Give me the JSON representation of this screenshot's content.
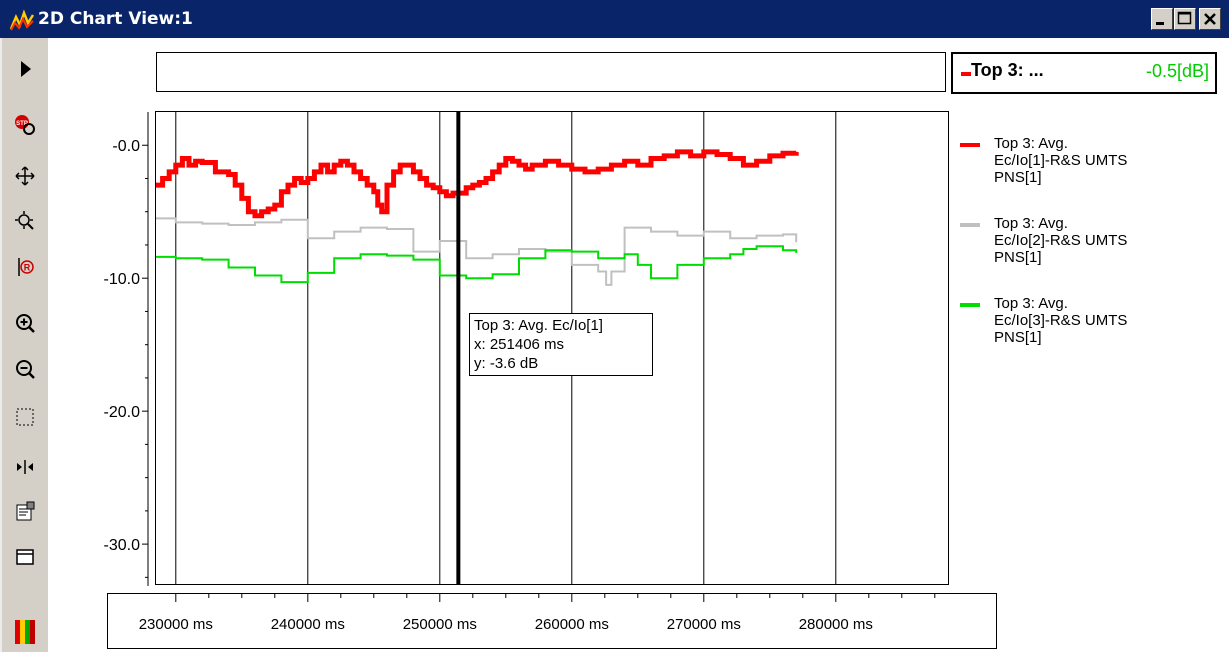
{
  "window": {
    "title": "2D Chart View:1",
    "controls": [
      "minimize",
      "maximize",
      "close"
    ],
    "titlebar_color": "#0a246a"
  },
  "toolbar": {
    "tools": [
      {
        "name": "play-icon"
      },
      {
        "name": "stop-icon"
      },
      {
        "name": "pan-icon"
      },
      {
        "name": "zoom-fit-icon"
      },
      {
        "name": "marker-r-icon"
      },
      {
        "name": "zoom-in-icon"
      },
      {
        "name": "zoom-out-icon"
      },
      {
        "name": "zoom-rect-icon"
      },
      {
        "name": "align-icon"
      },
      {
        "name": "properties-icon"
      },
      {
        "name": "window-icon"
      },
      {
        "name": "color-bars-icon"
      }
    ]
  },
  "header_legend": {
    "name": "Top 3: ...",
    "value": "-0.5[dB]",
    "value_color": "#00cc00"
  },
  "tooltip": {
    "series": "Top 3: Avg. Ec/Io[1]",
    "x": "x: 251406 ms",
    "y": "y: -3.6 dB"
  },
  "legend": [
    {
      "line1": "Top 3: Avg.",
      "line2": "Ec/Io[1]-R&S UMTS",
      "line3": "PNS[1]",
      "color": "#ff0000"
    },
    {
      "line1": "Top 3: Avg.",
      "line2": "Ec/Io[2]-R&S UMTS",
      "line3": "PNS[1]",
      "color": "#c0c0c0"
    },
    {
      "line1": "Top 3: Avg.",
      "line2": "Ec/Io[3]-R&S UMTS",
      "line3": "PNS[1]",
      "color": "#00dd00"
    }
  ],
  "chart_data": {
    "type": "line",
    "title": "",
    "xlabel": "",
    "ylabel": "",
    "xlim": [
      228500,
      288500
    ],
    "ylim": [
      -33,
      2.5
    ],
    "x_ticks": [
      230000,
      240000,
      250000,
      260000,
      270000,
      280000
    ],
    "x_tick_labels": [
      "230000 ms",
      "240000 ms",
      "250000 ms",
      "260000 ms",
      "270000 ms",
      "280000 ms"
    ],
    "y_ticks": [
      0,
      -10,
      -20,
      -30
    ],
    "y_tick_labels": [
      "-0.0",
      "-10.0",
      "-20.0",
      "-30.0"
    ],
    "vertical_gridlines": [
      230000,
      240000,
      250000,
      260000,
      270000,
      280000
    ],
    "cursor_x": 251406,
    "grid": true,
    "legend_position": "right",
    "series": [
      {
        "name": "Top 3: Avg. Ec/Io[1]-R&S UMTS PNS[1]",
        "color": "#ff0000",
        "width": 5,
        "x": [
          228500,
          229000,
          229500,
          230000,
          230500,
          231000,
          231500,
          232000,
          233000,
          234000,
          234500,
          235000,
          235500,
          236000,
          236500,
          237000,
          237500,
          238000,
          238500,
          239000,
          239500,
          240000,
          240500,
          241000,
          241500,
          242000,
          242500,
          243000,
          243500,
          244000,
          244500,
          245000,
          245300,
          245600,
          246000,
          246500,
          247000,
          247500,
          248000,
          248500,
          249000,
          249500,
          250000,
          250500,
          251000,
          251406,
          252000,
          252500,
          253000,
          253500,
          254000,
          254500,
          255000,
          255500,
          256000,
          256500,
          257000,
          258000,
          259000,
          260000,
          261000,
          262000,
          263000,
          264000,
          265000,
          266000,
          267000,
          268000,
          269000,
          270000,
          271000,
          272000,
          273000,
          274000,
          275000,
          276000,
          277000
        ],
        "y": [
          -3.0,
          -2.5,
          -2.0,
          -1.5,
          -1.0,
          -1.5,
          -1.2,
          -1.3,
          -2.0,
          -2.2,
          -3.0,
          -4.0,
          -5.0,
          -5.3,
          -5.0,
          -4.8,
          -4.5,
          -3.5,
          -3.0,
          -2.5,
          -2.8,
          -2.5,
          -2.0,
          -1.5,
          -2.0,
          -1.5,
          -1.2,
          -1.5,
          -2.0,
          -2.5,
          -3.0,
          -3.5,
          -4.5,
          -5.0,
          -3.0,
          -2.0,
          -1.5,
          -1.5,
          -2.0,
          -2.5,
          -3.0,
          -3.2,
          -3.5,
          -3.8,
          -3.6,
          -3.6,
          -3.2,
          -3.0,
          -2.8,
          -2.5,
          -2.0,
          -1.5,
          -1.0,
          -1.2,
          -1.5,
          -1.8,
          -1.5,
          -1.2,
          -1.5,
          -1.8,
          -2.0,
          -1.8,
          -1.5,
          -1.2,
          -1.5,
          -1.0,
          -0.8,
          -0.5,
          -0.8,
          -0.5,
          -0.7,
          -1.0,
          -1.5,
          -1.2,
          -0.8,
          -0.6,
          -0.5
        ]
      },
      {
        "name": "Top 3: Avg. Ec/Io[2]-R&S UMTS PNS[1]",
        "color": "#c0c0c0",
        "width": 2,
        "x": [
          228500,
          230000,
          232000,
          234000,
          236000,
          238000,
          240000,
          242000,
          244000,
          246000,
          248000,
          250000,
          252000,
          254000,
          256000,
          258000,
          260000,
          262000,
          262600,
          263000,
          264000,
          266000,
          268000,
          270000,
          272000,
          274000,
          276000,
          277000
        ],
        "y": [
          -5.5,
          -5.8,
          -5.9,
          -6.0,
          -5.8,
          -5.6,
          -7.0,
          -6.5,
          -6.2,
          -6.3,
          -8.0,
          -7.2,
          -8.5,
          -8.2,
          -7.8,
          -8.0,
          -9.0,
          -9.5,
          -10.5,
          -9.5,
          -6.2,
          -6.5,
          -6.8,
          -6.5,
          -7.0,
          -6.8,
          -6.7,
          -7.3
        ]
      },
      {
        "name": "Top 3: Avg. Ec/Io[3]-R&S UMTS PNS[1]",
        "color": "#00dd00",
        "width": 2,
        "x": [
          228500,
          230000,
          232000,
          234000,
          236000,
          238000,
          240000,
          242000,
          244000,
          246000,
          248000,
          250000,
          252000,
          254000,
          256000,
          258000,
          260000,
          262000,
          264000,
          265000,
          266000,
          268000,
          270000,
          272000,
          273000,
          274000,
          276000,
          277000
        ],
        "y": [
          -8.4,
          -8.5,
          -8.6,
          -9.2,
          -9.8,
          -10.3,
          -9.6,
          -8.5,
          -8.2,
          -8.3,
          -8.6,
          -9.8,
          -10.0,
          -9.7,
          -8.5,
          -7.9,
          -8.0,
          -8.5,
          -8.2,
          -9.0,
          -10.0,
          -9.0,
          -8.5,
          -8.2,
          -7.8,
          -7.6,
          -7.9,
          -8.1
        ]
      }
    ]
  }
}
